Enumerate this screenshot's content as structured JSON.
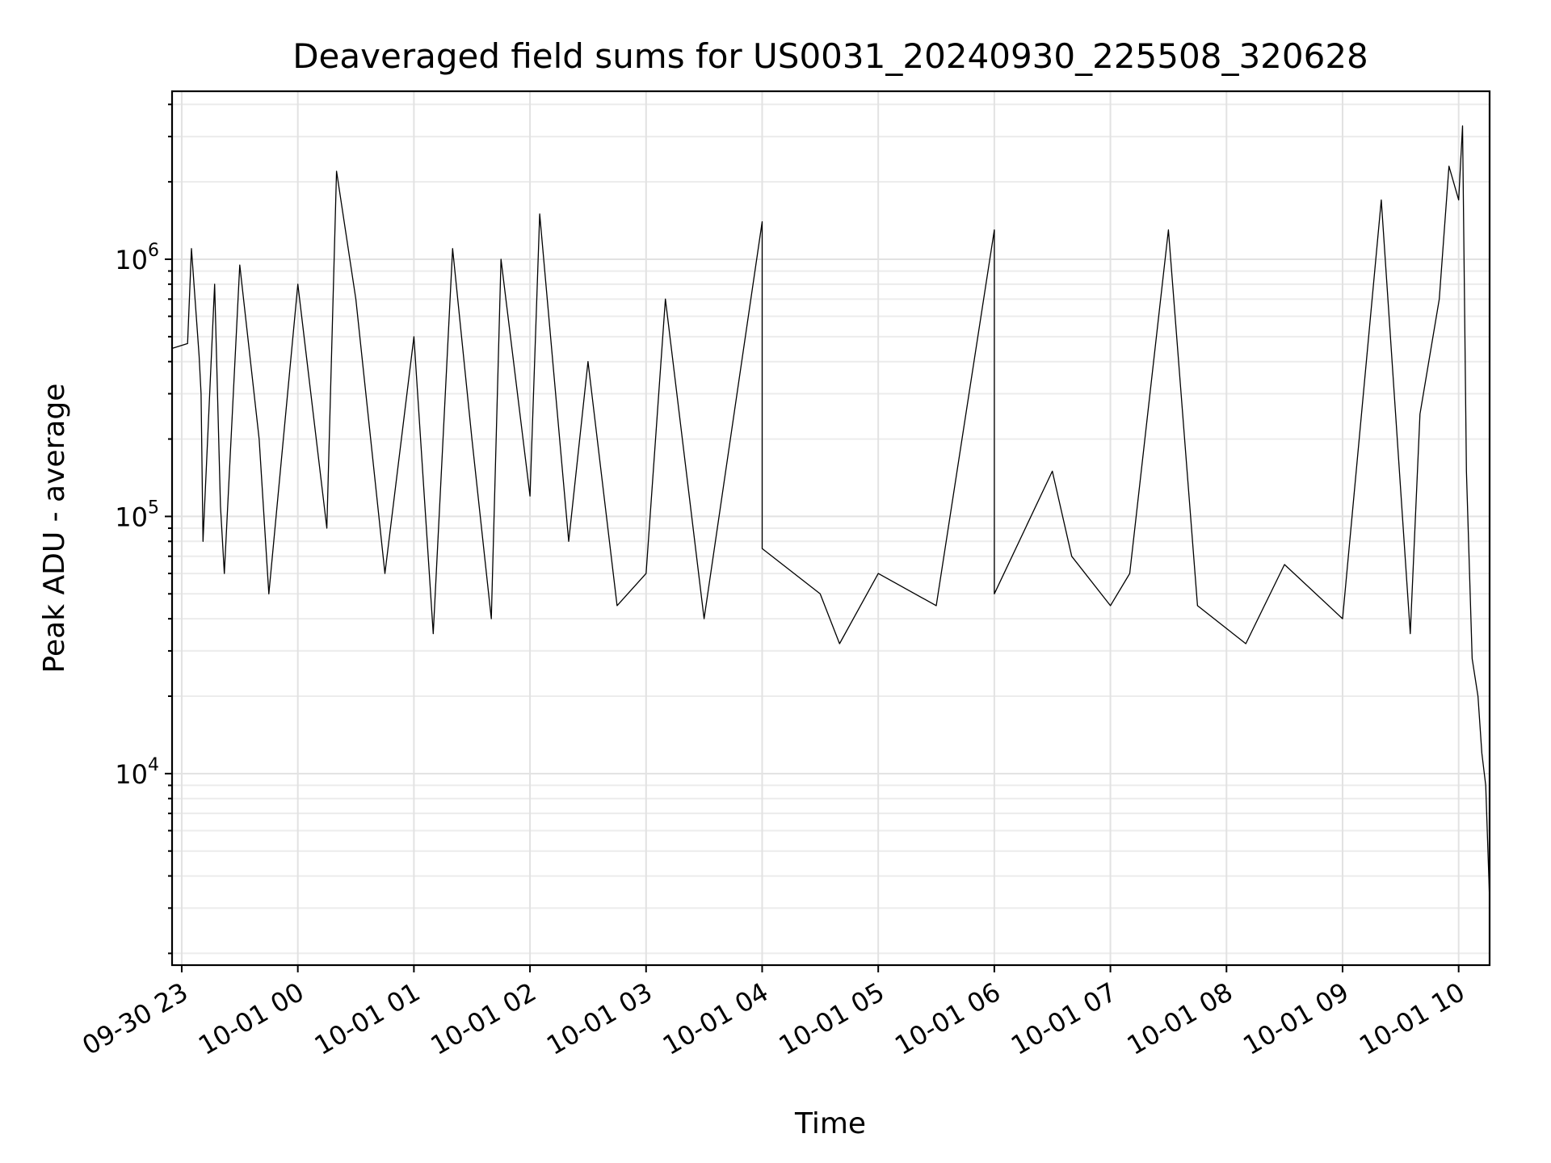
{
  "chart_data": {
    "type": "line",
    "title": "Deaveraged field sums for US0031_20240930_225508_320628",
    "xlabel": "Time",
    "ylabel": "Peak ADU - average",
    "yscale": "log",
    "ylim": [
      1800,
      4500000
    ],
    "xlim": [
      "2024-09-30 22:55",
      "2024-10-01 10:16"
    ],
    "grid": true,
    "grid_minor": true,
    "x_ticks": [
      {
        "value": "2024-09-30 23:00",
        "label": "09-30 23"
      },
      {
        "value": "2024-10-01 00:00",
        "label": "10-01 00"
      },
      {
        "value": "2024-10-01 01:00",
        "label": "10-01 01"
      },
      {
        "value": "2024-10-01 02:00",
        "label": "10-01 02"
      },
      {
        "value": "2024-10-01 03:00",
        "label": "10-01 03"
      },
      {
        "value": "2024-10-01 04:00",
        "label": "10-01 04"
      },
      {
        "value": "2024-10-01 05:00",
        "label": "10-01 05"
      },
      {
        "value": "2024-10-01 06:00",
        "label": "10-01 06"
      },
      {
        "value": "2024-10-01 07:00",
        "label": "10-01 07"
      },
      {
        "value": "2024-10-01 08:00",
        "label": "10-01 08"
      },
      {
        "value": "2024-10-01 09:00",
        "label": "10-01 09"
      },
      {
        "value": "2024-10-01 10:00",
        "label": "10-01 10"
      }
    ],
    "y_ticks": [
      {
        "value": 10000,
        "base": "10",
        "exp": "4"
      },
      {
        "value": 100000,
        "base": "10",
        "exp": "5"
      },
      {
        "value": 1000000,
        "base": "10",
        "exp": "6"
      }
    ],
    "series_color": "#000000",
    "series": [
      {
        "points": [
          [
            "2024-09-30 22:55",
            450000
          ],
          [
            "2024-09-30 23:03",
            470000
          ],
          [
            "2024-09-30 23:05",
            1100000
          ],
          [
            "2024-09-30 23:09",
            420000
          ],
          [
            "2024-09-30 23:10",
            300000
          ],
          [
            "2024-09-30 23:11",
            80000
          ],
          [
            "2024-09-30 23:17",
            800000
          ],
          [
            "2024-09-30 23:20",
            110000
          ],
          [
            "2024-09-30 23:22",
            60000
          ],
          [
            "2024-09-30 23:30",
            950000
          ],
          [
            "2024-09-30 23:40",
            200000
          ],
          [
            "2024-09-30 23:45",
            50000
          ],
          [
            "2024-10-01 00:00",
            800000
          ],
          [
            "2024-10-01 00:15",
            90000
          ],
          [
            "2024-10-01 00:20",
            2200000
          ],
          [
            "2024-10-01 00:30",
            700000
          ],
          [
            "2024-10-01 00:45",
            60000
          ],
          [
            "2024-10-01 01:00",
            500000
          ],
          [
            "2024-10-01 01:10",
            35000
          ],
          [
            "2024-10-01 01:20",
            1100000
          ],
          [
            "2024-10-01 01:30",
            200000
          ],
          [
            "2024-10-01 01:40",
            40000
          ],
          [
            "2024-10-01 01:45",
            1000000
          ],
          [
            "2024-10-01 02:00",
            120000
          ],
          [
            "2024-10-01 02:05",
            1500000
          ],
          [
            "2024-10-01 02:20",
            80000
          ],
          [
            "2024-10-01 02:30",
            400000
          ],
          [
            "2024-10-01 02:45",
            45000
          ],
          [
            "2024-10-01 03:00",
            60000
          ],
          [
            "2024-10-01 03:10",
            700000
          ],
          [
            "2024-10-01 03:30",
            40000
          ],
          [
            "2024-10-01 04:00",
            1400000
          ],
          [
            "2024-10-01 04:00",
            75000
          ],
          [
            "2024-10-01 04:30",
            50000
          ],
          [
            "2024-10-01 04:40",
            32000
          ],
          [
            "2024-10-01 05:00",
            60000
          ],
          [
            "2024-10-01 05:30",
            45000
          ],
          [
            "2024-10-01 06:00",
            1300000
          ],
          [
            "2024-10-01 06:00",
            50000
          ],
          [
            "2024-10-01 06:30",
            150000
          ],
          [
            "2024-10-01 06:40",
            70000
          ],
          [
            "2024-10-01 07:00",
            45000
          ],
          [
            "2024-10-01 07:10",
            60000
          ],
          [
            "2024-10-01 07:30",
            1300000
          ],
          [
            "2024-10-01 07:45",
            45000
          ],
          [
            "2024-10-01 08:10",
            32000
          ],
          [
            "2024-10-01 08:30",
            65000
          ],
          [
            "2024-10-01 09:00",
            40000
          ],
          [
            "2024-10-01 09:20",
            1700000
          ],
          [
            "2024-10-01 09:35",
            35000
          ],
          [
            "2024-10-01 09:40",
            250000
          ],
          [
            "2024-10-01 09:50",
            700000
          ],
          [
            "2024-10-01 09:55",
            2300000
          ],
          [
            "2024-10-01 10:00",
            1700000
          ],
          [
            "2024-10-01 10:02",
            3300000
          ],
          [
            "2024-10-01 10:04",
            150000
          ],
          [
            "2024-10-01 10:07",
            28000
          ],
          [
            "2024-10-01 10:10",
            20000
          ],
          [
            "2024-10-01 10:12",
            12000
          ],
          [
            "2024-10-01 10:14",
            9000
          ],
          [
            "2024-10-01 10:16",
            3200
          ]
        ]
      }
    ]
  }
}
